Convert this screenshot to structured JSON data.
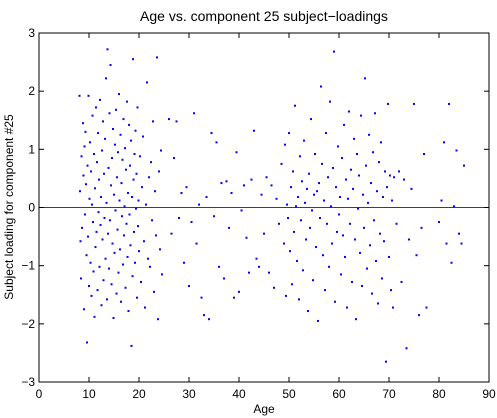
{
  "chart_data": {
    "type": "scatter",
    "title": "Age vs. component 25 subject−loadings",
    "xlabel": "Age",
    "ylabel": "Subject loading for component #25",
    "xlim": [
      0,
      90
    ],
    "ylim": [
      -3,
      3
    ],
    "xticks": [
      "0",
      "10",
      "20",
      "30",
      "40",
      "50",
      "60",
      "70",
      "80",
      "90"
    ],
    "yticks": [
      "3",
      "2",
      "1",
      "0",
      "−1",
      "−2",
      "−3"
    ],
    "grid": false,
    "legend": "none",
    "reference_line_y": 0,
    "marker_color": "#0000ff",
    "points": [
      [
        8.1,
        1.92
      ],
      [
        8.2,
        0.28
      ],
      [
        8.3,
        -0.58
      ],
      [
        8.4,
        -1.22
      ],
      [
        8.5,
        0.88
      ],
      [
        8.6,
        -0.35
      ],
      [
        8.8,
        1.45
      ],
      [
        8.9,
        0.55
      ],
      [
        9.0,
        -1.75
      ],
      [
        9.1,
        1.05
      ],
      [
        9.2,
        -0.12
      ],
      [
        9.3,
        1.3
      ],
      [
        9.4,
        0.4
      ],
      [
        9.5,
        -0.82
      ],
      [
        9.6,
        -2.32
      ],
      [
        9.7,
        0.72
      ],
      [
        9.8,
        -0.5
      ],
      [
        9.9,
        1.92
      ],
      [
        10.0,
        -1.35
      ],
      [
        10.1,
        0.15
      ],
      [
        10.2,
        1.12
      ],
      [
        10.3,
        -0.95
      ],
      [
        10.4,
        0.62
      ],
      [
        10.5,
        -1.52
      ],
      [
        10.6,
        0.05
      ],
      [
        10.7,
        1.58
      ],
      [
        10.8,
        -0.25
      ],
      [
        10.9,
        -1.1
      ],
      [
        11.0,
        0.92
      ],
      [
        11.1,
        -1.88
      ],
      [
        11.2,
        0.33
      ],
      [
        11.3,
        -0.68
      ],
      [
        11.4,
        1.72
      ],
      [
        11.5,
        -0.42
      ],
      [
        11.6,
        0.78
      ],
      [
        11.7,
        -1.42
      ],
      [
        11.8,
        1.28
      ],
      [
        11.9,
        -0.08
      ],
      [
        12.0,
        0.48
      ],
      [
        12.1,
        -1.02
      ],
      [
        12.2,
        1.85
      ],
      [
        12.3,
        -0.3
      ],
      [
        12.4,
        0.18
      ],
      [
        12.5,
        -1.68
      ],
      [
        12.6,
        0.98
      ],
      [
        12.7,
        -0.55
      ],
      [
        12.8,
        1.48
      ],
      [
        12.9,
        -1.25
      ],
      [
        13.0,
        0.58
      ],
      [
        13.1,
        -0.18
      ],
      [
        13.2,
        1.18
      ],
      [
        13.3,
        -0.88
      ],
      [
        13.4,
        2.22
      ],
      [
        13.5,
        0.08
      ],
      [
        13.6,
        -1.58
      ],
      [
        13.7,
        2.72
      ],
      [
        13.8,
        -0.45
      ],
      [
        13.9,
        0.68
      ],
      [
        14.0,
        -1.05
      ],
      [
        14.1,
        1.62
      ],
      [
        14.2,
        -0.22
      ],
      [
        14.3,
        2.45
      ],
      [
        14.4,
        0.38
      ],
      [
        14.5,
        -1.32
      ],
      [
        14.6,
        0.85
      ],
      [
        14.7,
        -0.62
      ],
      [
        14.8,
        1.35
      ],
      [
        14.9,
        -1.9
      ],
      [
        15.0,
        0.22
      ],
      [
        15.1,
        -0.78
      ],
      [
        15.2,
        1.08
      ],
      [
        15.3,
        -0.05
      ],
      [
        15.4,
        1.68
      ],
      [
        15.5,
        -1.48
      ],
      [
        15.6,
        0.52
      ],
      [
        15.7,
        -0.38
      ],
      [
        15.8,
        0.95
      ],
      [
        15.9,
        -1.12
      ],
      [
        16.0,
        1.95
      ],
      [
        16.1,
        0.12
      ],
      [
        16.2,
        -0.72
      ],
      [
        16.3,
        1.25
      ],
      [
        16.4,
        -1.62
      ],
      [
        16.5,
        0.42
      ],
      [
        16.6,
        -0.15
      ],
      [
        16.7,
        0.82
      ],
      [
        16.8,
        -0.98
      ],
      [
        16.9,
        1.52
      ],
      [
        17.0,
        -0.48
      ],
      [
        17.1,
        0.02
      ],
      [
        17.2,
        1.02
      ],
      [
        17.3,
        -1.38
      ],
      [
        17.4,
        0.65
      ],
      [
        17.5,
        -0.28
      ],
      [
        17.6,
        1.82
      ],
      [
        17.7,
        -0.85
      ],
      [
        17.8,
        0.25
      ],
      [
        17.9,
        -1.78
      ],
      [
        18.0,
        1.42
      ],
      [
        18.1,
        -0.12
      ],
      [
        18.2,
        0.72
      ],
      [
        18.3,
        -0.65
      ],
      [
        18.4,
        1.15
      ],
      [
        18.5,
        -2.38
      ],
      [
        18.6,
        0.18
      ],
      [
        18.7,
        -1.18
      ],
      [
        18.8,
        2.55
      ],
      [
        18.9,
        0.48
      ],
      [
        19.0,
        -0.42
      ],
      [
        19.1,
        0.92
      ],
      [
        19.2,
        -0.95
      ],
      [
        19.3,
        1.32
      ],
      [
        19.4,
        -0.02
      ],
      [
        19.5,
        0.58
      ],
      [
        19.6,
        -1.55
      ],
      [
        19.7,
        1.72
      ],
      [
        19.8,
        -0.32
      ],
      [
        19.9,
        0.12
      ],
      [
        20.0,
        -0.75
      ],
      [
        20.2,
        0.88
      ],
      [
        20.4,
        -1.28
      ],
      [
        20.6,
        0.35
      ],
      [
        20.8,
        1.22
      ],
      [
        21.0,
        -0.58
      ],
      [
        21.2,
        -1.72
      ],
      [
        21.4,
        0.05
      ],
      [
        21.6,
        2.15
      ],
      [
        21.8,
        -0.88
      ],
      [
        22.0,
        0.52
      ],
      [
        22.2,
        -1.02
      ],
      [
        22.4,
        0.78
      ],
      [
        22.6,
        -0.22
      ],
      [
        22.8,
        1.48
      ],
      [
        23.0,
        -1.45
      ],
      [
        23.2,
        0.28
      ],
      [
        23.4,
        -0.48
      ],
      [
        23.6,
        2.58
      ],
      [
        23.8,
        -1.92
      ],
      [
        24.0,
        0.62
      ],
      [
        24.2,
        -0.72
      ],
      [
        24.4,
        0.98
      ],
      [
        24.6,
        -1.15
      ],
      [
        26.0,
        1.52
      ],
      [
        26.5,
        -0.45
      ],
      [
        27.0,
        0.85
      ],
      [
        27.5,
        1.48
      ],
      [
        28.0,
        -0.18
      ],
      [
        28.5,
        0.25
      ],
      [
        29.0,
        -0.95
      ],
      [
        29.5,
        0.35
      ],
      [
        30.0,
        -1.35
      ],
      [
        30.5,
        -0.25
      ],
      [
        31.0,
        1.62
      ],
      [
        31.5,
        -0.62
      ],
      [
        32.0,
        0.05
      ],
      [
        32.5,
        -1.55
      ],
      [
        33.0,
        -1.85
      ],
      [
        33.5,
        0.18
      ],
      [
        34.0,
        -1.92
      ],
      [
        34.5,
        1.28
      ],
      [
        35.0,
        -0.15
      ],
      [
        35.5,
        1.12
      ],
      [
        36.0,
        -1.02
      ],
      [
        36.5,
        0.42
      ],
      [
        37.0,
        -1.22
      ],
      [
        37.5,
        0.45
      ],
      [
        38.0,
        -0.35
      ],
      [
        38.5,
        0.25
      ],
      [
        39.0,
        -1.55
      ],
      [
        39.5,
        0.95
      ],
      [
        40.0,
        -1.45
      ],
      [
        40.5,
        -0.05
      ],
      [
        41.0,
        0.38
      ],
      [
        41.5,
        -0.52
      ],
      [
        42.0,
        -1.12
      ],
      [
        42.5,
        0.48
      ],
      [
        43.0,
        1.32
      ],
      [
        43.5,
        -0.88
      ],
      [
        44.0,
        -1.02
      ],
      [
        44.5,
        0.22
      ],
      [
        45.0,
        -0.45
      ],
      [
        45.5,
        0.52
      ],
      [
        46.0,
        -1.12
      ],
      [
        46.5,
        0.38
      ],
      [
        47.0,
        -1.38
      ],
      [
        47.5,
        0.15
      ],
      [
        48.0,
        -0.28
      ],
      [
        48.5,
        0.75
      ],
      [
        49.0,
        -0.62
      ],
      [
        49.2,
        1.08
      ],
      [
        49.4,
        -1.52
      ],
      [
        49.6,
        0.05
      ],
      [
        49.8,
        -0.18
      ],
      [
        50.0,
        1.28
      ],
      [
        50.2,
        -0.75
      ],
      [
        50.4,
        0.35
      ],
      [
        50.6,
        -1.32
      ],
      [
        50.8,
        0.62
      ],
      [
        51.0,
        -0.42
      ],
      [
        51.2,
        1.75
      ],
      [
        51.4,
        0.02
      ],
      [
        51.6,
        -0.92
      ],
      [
        51.8,
        0.18
      ],
      [
        52.0,
        -1.58
      ],
      [
        52.2,
        0.88
      ],
      [
        52.4,
        -0.22
      ],
      [
        52.6,
        0.45
      ],
      [
        52.8,
        -1.08
      ],
      [
        53.0,
        1.15
      ],
      [
        53.2,
        0.08
      ],
      [
        53.4,
        -0.55
      ],
      [
        53.6,
        0.32
      ],
      [
        53.8,
        -1.78
      ],
      [
        54.0,
        0.58
      ],
      [
        54.2,
        -0.35
      ],
      [
        54.4,
        1.52
      ],
      [
        54.6,
        -0.05
      ],
      [
        54.8,
        -1.25
      ],
      [
        55.0,
        0.22
      ],
      [
        55.2,
        0.92
      ],
      [
        55.4,
        -0.68
      ],
      [
        55.6,
        0.28
      ],
      [
        55.8,
        -1.95
      ],
      [
        56.0,
        0.42
      ],
      [
        56.2,
        -0.18
      ],
      [
        56.4,
        2.08
      ],
      [
        56.6,
        0.75
      ],
      [
        56.8,
        -0.82
      ],
      [
        57.0,
        0.12
      ],
      [
        57.2,
        -1.42
      ],
      [
        57.4,
        1.28
      ],
      [
        57.6,
        -0.28
      ],
      [
        57.8,
        0.52
      ],
      [
        58.0,
        -1.02
      ],
      [
        58.2,
        1.82
      ],
      [
        58.4,
        0.02
      ],
      [
        58.6,
        -0.62
      ],
      [
        58.8,
        0.68
      ],
      [
        59.0,
        2.68
      ],
      [
        59.2,
        -1.62
      ],
      [
        59.4,
        0.35
      ],
      [
        59.6,
        -0.42
      ],
      [
        59.8,
        1.05
      ],
      [
        60.0,
        -0.12
      ],
      [
        60.2,
        0.18
      ],
      [
        60.4,
        -1.15
      ],
      [
        60.6,
        0.85
      ],
      [
        60.8,
        -0.48
      ],
      [
        61.0,
        1.42
      ],
      [
        61.2,
        -0.85
      ],
      [
        61.4,
        0.48
      ],
      [
        61.6,
        -1.72
      ],
      [
        61.8,
        0.15
      ],
      [
        62.0,
        1.65
      ],
      [
        62.2,
        -0.28
      ],
      [
        62.4,
        0.65
      ],
      [
        62.6,
        -1.28
      ],
      [
        62.8,
        0.32
      ],
      [
        63.0,
        1.18
      ],
      [
        63.2,
        -0.55
      ],
      [
        63.4,
        -1.92
      ],
      [
        63.6,
        0.92
      ],
      [
        63.8,
        -0.02
      ],
      [
        64.0,
        0.55
      ],
      [
        64.2,
        -0.78
      ],
      [
        64.4,
        1.58
      ],
      [
        64.6,
        -1.35
      ],
      [
        64.8,
        0.22
      ],
      [
        65.0,
        -0.35
      ],
      [
        65.2,
        2.22
      ],
      [
        65.4,
        0.72
      ],
      [
        65.6,
        -1.05
      ],
      [
        65.8,
        0.08
      ],
      [
        66.0,
        1.25
      ],
      [
        66.2,
        -0.65
      ],
      [
        66.4,
        0.42
      ],
      [
        66.6,
        -1.48
      ],
      [
        66.8,
        0.95
      ],
      [
        67.0,
        -0.22
      ],
      [
        67.2,
        1.62
      ],
      [
        67.4,
        -0.92
      ],
      [
        67.6,
        0.28
      ],
      [
        67.8,
        -1.65
      ],
      [
        68.0,
        0.78
      ],
      [
        68.2,
        -0.45
      ],
      [
        68.4,
        1.12
      ],
      [
        68.6,
        -1.22
      ],
      [
        68.8,
        0.18
      ],
      [
        69.0,
        -0.58
      ],
      [
        69.2,
        0.62
      ],
      [
        69.4,
        -2.65
      ],
      [
        69.6,
        0.35
      ],
      [
        69.8,
        1.78
      ],
      [
        70.0,
        -0.85
      ],
      [
        70.2,
        0.55
      ],
      [
        70.4,
        -1.42
      ],
      [
        70.6,
        0.12
      ],
      [
        70.8,
        -1.72
      ],
      [
        71.0,
        0.52
      ],
      [
        71.5,
        -0.28
      ],
      [
        72.0,
        0.62
      ],
      [
        72.5,
        -1.28
      ],
      [
        73.0,
        0.48
      ],
      [
        73.5,
        -2.42
      ],
      [
        74.0,
        -0.55
      ],
      [
        74.5,
        0.32
      ],
      [
        75.0,
        1.78
      ],
      [
        75.5,
        -0.82
      ],
      [
        76.0,
        -1.85
      ],
      [
        76.5,
        -0.35
      ],
      [
        77.0,
        0.92
      ],
      [
        77.5,
        -1.72
      ],
      [
        80.0,
        -0.25
      ],
      [
        80.5,
        0.12
      ],
      [
        81.0,
        1.12
      ],
      [
        81.5,
        -0.62
      ],
      [
        82.0,
        1.78
      ],
      [
        82.5,
        -0.95
      ],
      [
        83.0,
        0.02
      ],
      [
        83.5,
        0.98
      ],
      [
        84.0,
        -0.45
      ],
      [
        84.5,
        -0.62
      ],
      [
        85.0,
        0.72
      ]
    ]
  }
}
